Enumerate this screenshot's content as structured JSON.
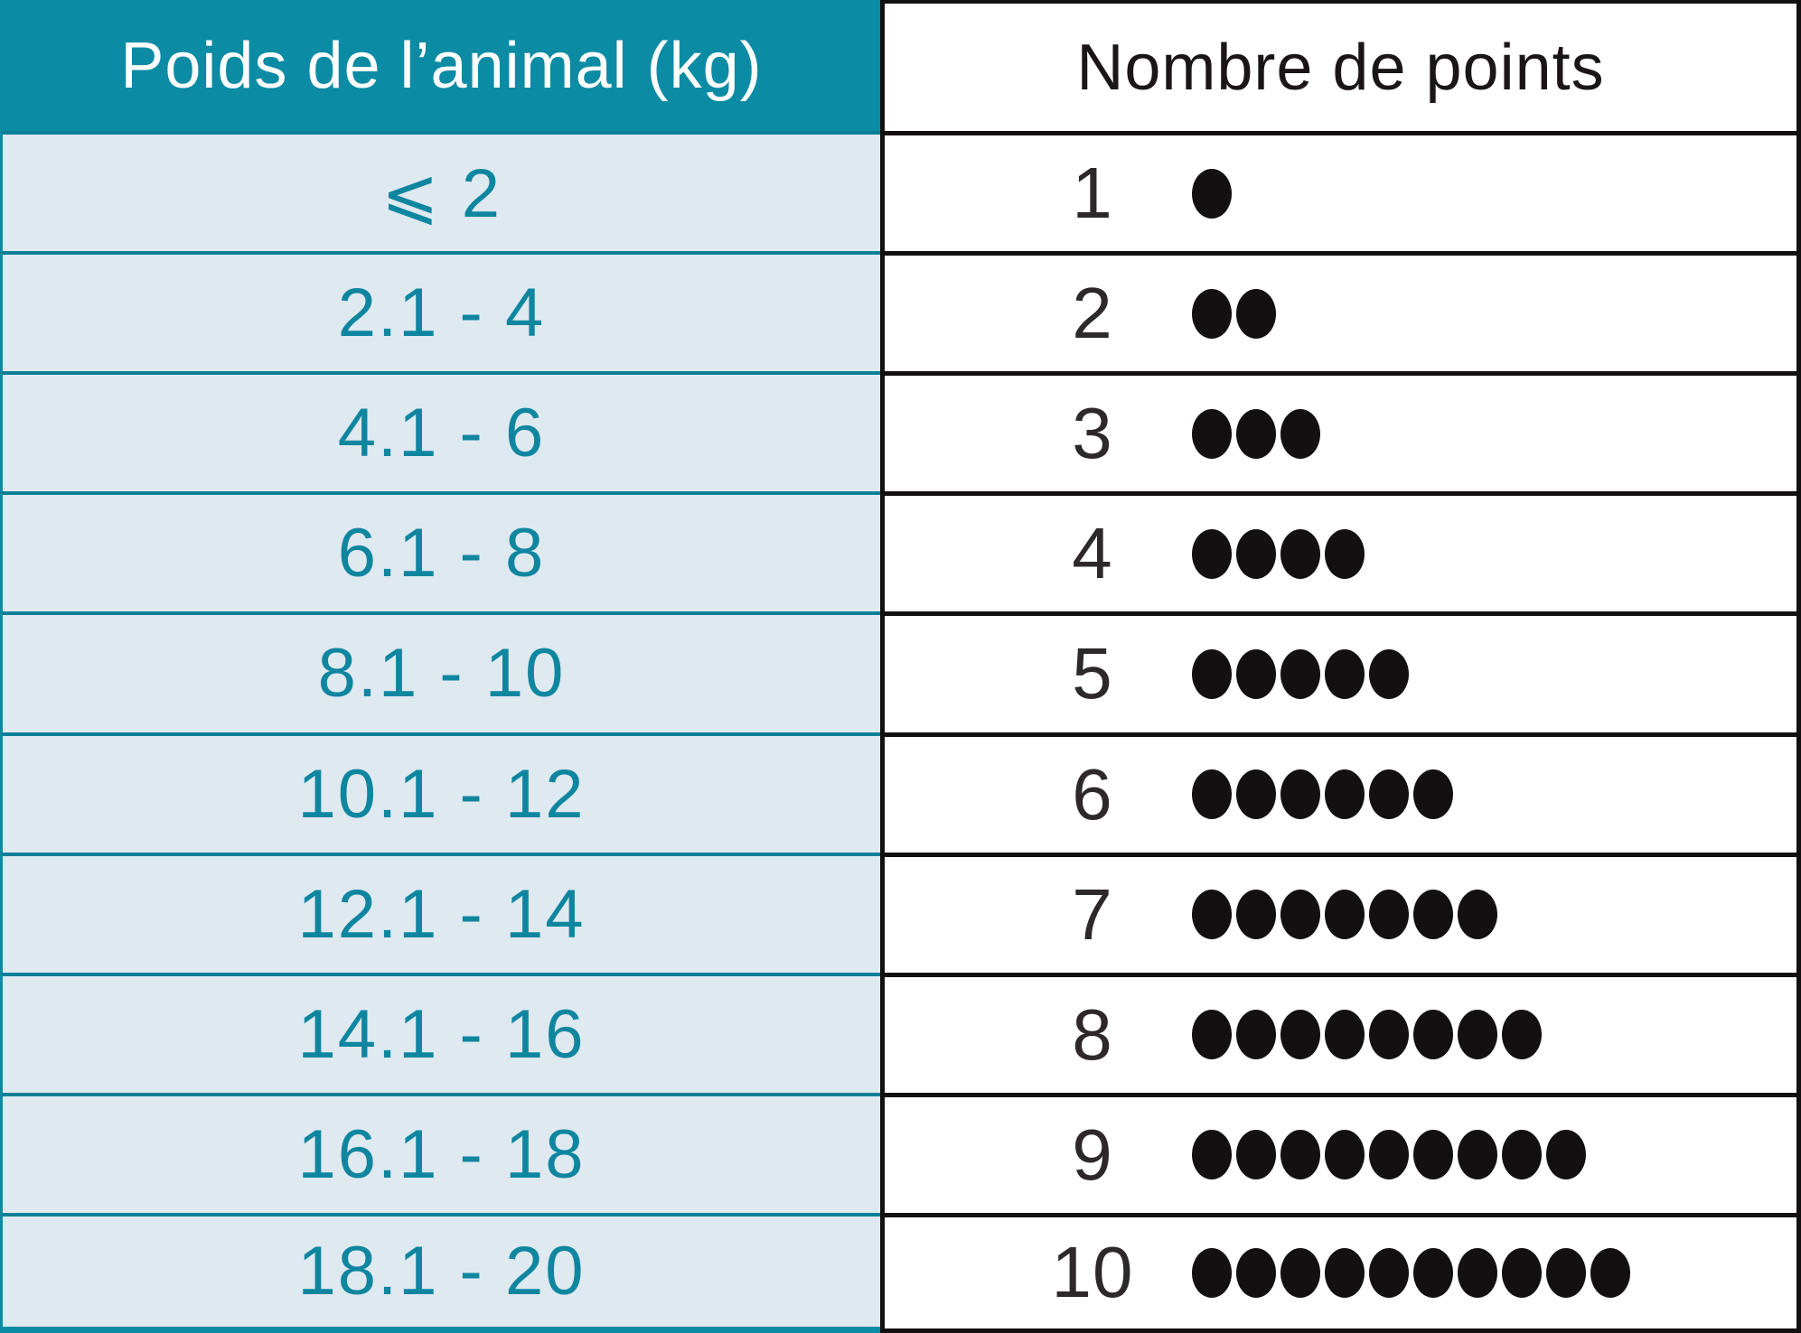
{
  "table": {
    "left_header": "Poids de l’animal (kg)",
    "right_header": "Nombre de points",
    "rows": [
      {
        "weight": "⩽ 2",
        "points": 1
      },
      {
        "weight": "2.1 - 4",
        "points": 2
      },
      {
        "weight": "4.1 - 6",
        "points": 3
      },
      {
        "weight": "6.1 - 8",
        "points": 4
      },
      {
        "weight": "8.1 - 10",
        "points": 5
      },
      {
        "weight": "10.1 - 12",
        "points": 6
      },
      {
        "weight": "12.1 - 14",
        "points": 7
      },
      {
        "weight": "14.1 - 16",
        "points": 8
      },
      {
        "weight": "16.1 - 18",
        "points": 9
      },
      {
        "weight": "18.1 - 20",
        "points": 10
      }
    ]
  },
  "chart_data": {
    "type": "table",
    "title": "",
    "columns": [
      "Poids de l’animal (kg)",
      "Nombre de points"
    ],
    "rows": [
      [
        "⩽ 2",
        1
      ],
      [
        "2.1 - 4",
        2
      ],
      [
        "4.1 - 6",
        3
      ],
      [
        "6.1 - 8",
        4
      ],
      [
        "8.1 - 10",
        5
      ],
      [
        "10.1 - 12",
        6
      ],
      [
        "12.1 - 14",
        7
      ],
      [
        "14.1 - 16",
        8
      ],
      [
        "16.1 - 18",
        9
      ],
      [
        "18.1 - 20",
        10
      ]
    ],
    "notes": "Each row of the right column shows the point value as a numeral followed by that many filled dots."
  },
  "colors": {
    "teal_header": "#0c8ba4",
    "teal_separator": "#0a7f97",
    "teal_text": "#0f86a0",
    "row_light_blue": "#dfe9f0",
    "black_border": "#131011",
    "number_text": "#2d292a",
    "white": "#ffffff"
  }
}
